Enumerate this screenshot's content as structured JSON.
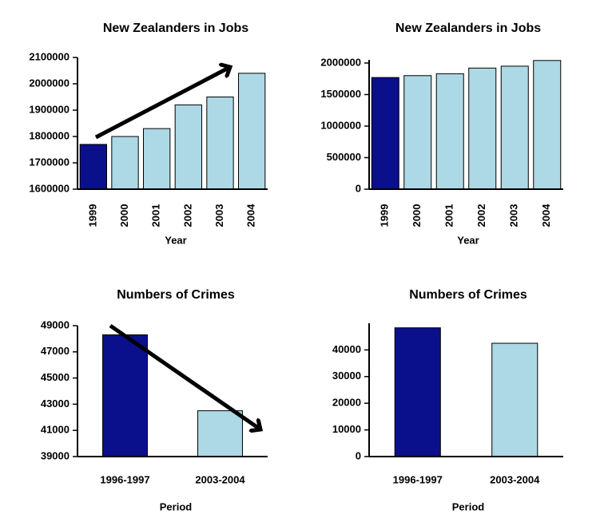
{
  "chart_data": [
    {
      "type": "bar",
      "title": "New Zealanders in Jobs",
      "xlabel": "Year",
      "categories": [
        "1999",
        "2000",
        "2001",
        "2002",
        "2003",
        "2004"
      ],
      "values": [
        1770000,
        1800000,
        1830000,
        1920000,
        1950000,
        2040000
      ],
      "colors": [
        "#0a0f8c",
        "#add8e6",
        "#add8e6",
        "#add8e6",
        "#add8e6",
        "#add8e6"
      ],
      "ylim": [
        1600000,
        2100000
      ],
      "yticks": [
        1600000,
        1700000,
        1800000,
        1900000,
        2000000,
        2100000
      ]
    },
    {
      "type": "bar",
      "title": "New Zealanders in Jobs",
      "xlabel": "Year",
      "categories": [
        "1999",
        "2000",
        "2001",
        "2002",
        "2003",
        "2004"
      ],
      "values": [
        1770000,
        1800000,
        1830000,
        1920000,
        1950000,
        2040000
      ],
      "colors": [
        "#0a0f8c",
        "#add8e6",
        "#add8e6",
        "#add8e6",
        "#add8e6",
        "#add8e6"
      ],
      "ylim": [
        0,
        2050000
      ],
      "yticks": [
        0,
        500000,
        1000000,
        1500000,
        2000000
      ]
    },
    {
      "type": "bar",
      "title": "Numbers of Crimes",
      "xlabel": "Period",
      "categories": [
        "1996-1997",
        "2003-2004"
      ],
      "values": [
        48300,
        42500
      ],
      "colors": [
        "#0a0f8c",
        "#add8e6"
      ],
      "ylim": [
        39000,
        49000
      ],
      "yticks": [
        39000,
        41000,
        43000,
        45000,
        47000,
        49000
      ]
    },
    {
      "type": "bar",
      "title": "Numbers of Crimes",
      "xlabel": "Period",
      "categories": [
        "1996-1997",
        "2003-2004"
      ],
      "values": [
        48300,
        42500
      ],
      "colors": [
        "#0a0f8c",
        "#add8e6"
      ],
      "ylim": [
        0,
        50000
      ],
      "yticks": [
        0,
        10000,
        20000,
        30000,
        40000
      ]
    }
  ]
}
